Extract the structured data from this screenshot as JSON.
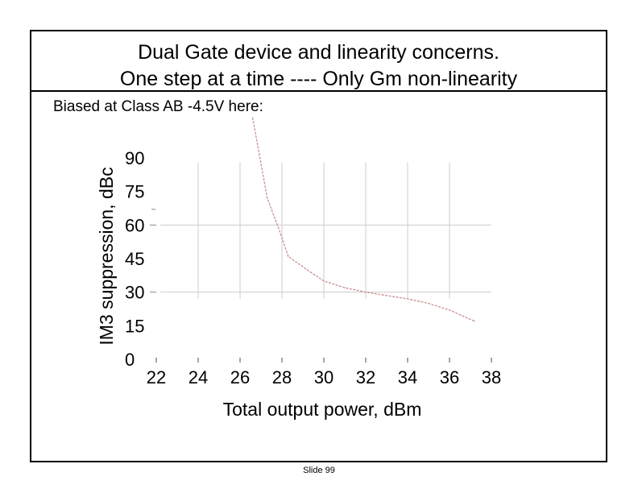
{
  "slide": {
    "title_line1": "Dual Gate device and linearity concerns.",
    "title_line2": "One step at a time ----   Only Gm non-linearity",
    "subtitle": "Biased at Class AB -4.5V here:",
    "footer": "Slide 99"
  },
  "chart_data": {
    "type": "line",
    "title": "",
    "xlabel": "Total output power, dBm",
    "ylabel": "IM3 suppression, dBc",
    "xlim": [
      22,
      38
    ],
    "ylim": [
      0,
      90
    ],
    "x_ticks": [
      "22",
      "24",
      "26",
      "28",
      "30",
      "32",
      "34",
      "36",
      "38"
    ],
    "y_ticks": [
      "0",
      "15",
      "30",
      "45",
      "60",
      "75",
      "90"
    ],
    "grid": true,
    "series": [
      {
        "color": "#c89090",
        "x": [
          26.6,
          27.3,
          27.9,
          28.3,
          29.2,
          30.0,
          31.0,
          32.0,
          33.0,
          34.0,
          35.0,
          36.0,
          37.2
        ],
        "y": [
          108,
          72,
          57,
          46,
          40,
          35,
          32,
          30,
          28.5,
          27,
          25,
          22,
          17
        ]
      }
    ],
    "colors": {
      "grid": "#cccccc",
      "tick": "#888888",
      "series": "#c89090"
    }
  }
}
